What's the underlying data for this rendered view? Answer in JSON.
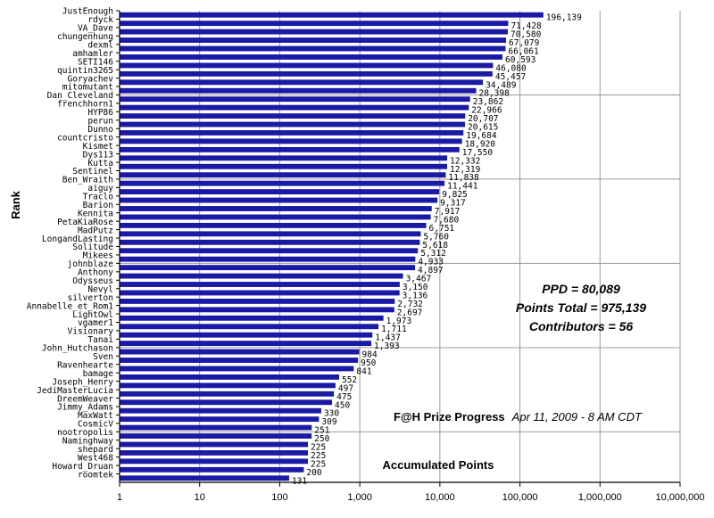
{
  "chart_data": {
    "type": "bar",
    "orientation": "horizontal",
    "x_scale": "log",
    "xlim": [
      1,
      10000000
    ],
    "x_ticks": [
      "1",
      "10",
      "100",
      "1,000",
      "10,000",
      "100,000",
      "1,000,000",
      "10,000,000"
    ],
    "ylabel": "Rank",
    "xlabel": "Accumulated Points",
    "bar_color": "#1a1aa6",
    "grid": "vertical major gridlines, horizontal separators every 10 rows",
    "categories": [
      "JustEnough",
      "rdyck",
      "VA_Dave",
      "chungenhung",
      "dexml",
      "amhamler",
      "SETI146",
      "quintin3265",
      "Goryachev",
      "mitomutant",
      "Dan_Cleveland",
      "frenchhorn1",
      "HYP86",
      "perun",
      "Dunno",
      "countcristo",
      "Kismet",
      "Dys113",
      "Kutta",
      "Sentinel",
      "Ben_Wraith",
      "aiguy",
      "Traclo",
      "Barion",
      "Kennita",
      "PetaKiaRose",
      "MadPutz",
      "LongandLasting",
      "Solitude",
      "Mikees",
      "johnblaze",
      "Anthony",
      "Odysseus",
      "Nevyl",
      "silverton",
      "Annabelle_et_Rom1",
      "LightOwl",
      "vgamer1",
      "Visionary",
      "Tanai",
      "John_Hutchason",
      "Sven",
      "Ravenhearte",
      "bamage",
      "Joseph_Henry",
      "JediMasterLucia",
      "DreemWeaver",
      "Jimmy_Adams",
      "MaxWatt",
      "CosmicV",
      "nootropolis",
      "Naminghway",
      "shepard",
      "West468",
      "Howard_Druan",
      "roomtek"
    ],
    "values": [
      196139,
      71428,
      70580,
      67079,
      66061,
      60593,
      46080,
      45457,
      34489,
      28398,
      23862,
      22966,
      20707,
      20615,
      19684,
      18920,
      17550,
      12332,
      12319,
      11838,
      11441,
      9825,
      9317,
      7917,
      7680,
      6751,
      5760,
      5618,
      5312,
      4933,
      4897,
      3467,
      3150,
      3136,
      2732,
      2697,
      1973,
      1711,
      1437,
      1393,
      984,
      950,
      841,
      552,
      497,
      475,
      450,
      330,
      309,
      251,
      250,
      225,
      225,
      225,
      200,
      131
    ],
    "value_labels": [
      "196,139",
      "71,428",
      "70,580",
      "67,079",
      "66,061",
      "60,593",
      "46,080",
      "45,457",
      "34,489",
      "28,398",
      "23,862",
      "22,966",
      "20,707",
      "20,615",
      "19,684",
      "18,920",
      "17,550",
      "12,332",
      "12,319",
      "11,838",
      "11,441",
      "9,825",
      "9,317",
      "7,917",
      "7,680",
      "6,751",
      "5,760",
      "5,618",
      "5,312",
      "4,933",
      "4,897",
      "3,467",
      "3,150",
      "3,136",
      "2,732",
      "2,697",
      "1,973",
      "1,711",
      "1,437",
      "1,393",
      "984",
      "950",
      "841",
      "552",
      "497",
      "475",
      "450",
      "330",
      "309",
      "251",
      "250",
      "225",
      "225",
      "225",
      "200",
      "131"
    ],
    "annotations": {
      "ppd": "PPD = 80,089",
      "points_total": "Points Total = 975,139",
      "contributors": "Contributors = 56",
      "title_bold": "F@H Prize Progress",
      "title_italic": "Apr 11, 2009 - 8 AM CDT"
    }
  }
}
